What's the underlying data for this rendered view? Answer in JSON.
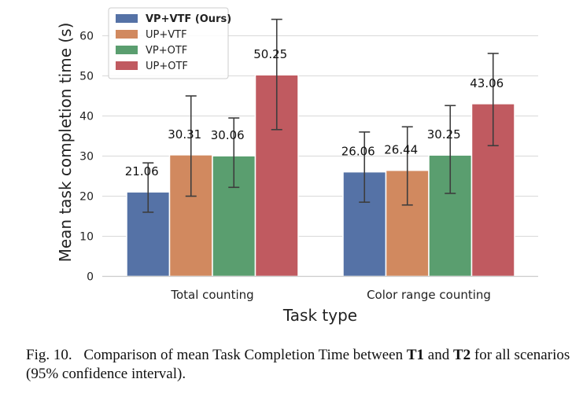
{
  "chart_data": {
    "type": "bar",
    "xlabel": "Task type",
    "ylabel": "Mean task completion time (s)",
    "categories": [
      "Total counting",
      "Color range counting"
    ],
    "ylim": [
      0,
      65
    ],
    "yticks": [
      0,
      10,
      20,
      30,
      40,
      50,
      60
    ],
    "grid": true,
    "legend_position": "top-left",
    "series": [
      {
        "name": "VP+VTF (Ours)",
        "color": "#5572a6",
        "values": [
          21.06,
          26.06
        ],
        "ci_low": [
          16.0,
          18.5
        ],
        "ci_high": [
          28.3,
          36.0
        ],
        "labels": [
          "21.06",
          "26.06"
        ],
        "bold_legend": true
      },
      {
        "name": "UP+VTF",
        "color": "#d1895f",
        "values": [
          30.31,
          26.44
        ],
        "ci_low": [
          20.0,
          17.8
        ],
        "ci_high": [
          45.0,
          37.3
        ],
        "labels": [
          "30.31",
          "26.44"
        ],
        "bold_legend": false
      },
      {
        "name": "VP+OTF",
        "color": "#5a9e6f",
        "values": [
          30.06,
          30.25
        ],
        "ci_low": [
          22.2,
          20.7
        ],
        "ci_high": [
          39.5,
          42.6
        ],
        "labels": [
          "30.06",
          "30.25"
        ],
        "bold_legend": false
      },
      {
        "name": "UP+OTF",
        "color": "#c05a60",
        "values": [
          50.25,
          43.06
        ],
        "ci_low": [
          36.6,
          32.6
        ],
        "ci_high": [
          64.1,
          55.6
        ],
        "labels": [
          "50.25",
          "43.06"
        ],
        "bold_legend": false
      }
    ]
  },
  "caption": {
    "label": "Fig. 10.",
    "text_1": "Comparison of mean Task Completion Time between ",
    "bold_1": "T1",
    "text_2": " and ",
    "bold_2": "T2",
    "text_3": " for all scenarios (95% confidence interval)."
  }
}
